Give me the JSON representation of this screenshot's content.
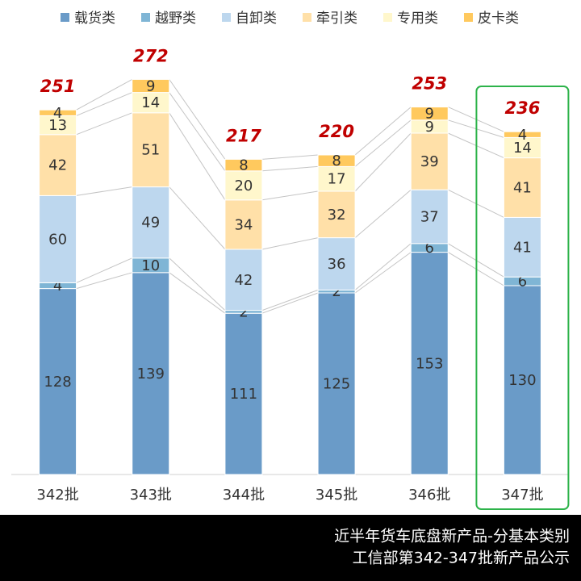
{
  "chart_data": {
    "type": "stacked_bar",
    "categories": [
      "342批",
      "343批",
      "344批",
      "345批",
      "346批",
      "347批"
    ],
    "series": [
      {
        "name": "载货类",
        "color": "#6a9bc8",
        "values": [
          128,
          139,
          111,
          125,
          153,
          130
        ]
      },
      {
        "name": "越野类",
        "color": "#7fb5d5",
        "values": [
          4,
          10,
          2,
          2,
          6,
          6
        ]
      },
      {
        "name": "自卸类",
        "color": "#bdd7ee",
        "values": [
          60,
          49,
          42,
          36,
          37,
          41
        ]
      },
      {
        "name": "牵引类",
        "color": "#ffe0a8",
        "values": [
          42,
          51,
          34,
          32,
          39,
          41
        ]
      },
      {
        "name": "专用类",
        "color": "#fff7cc",
        "values": [
          13,
          14,
          20,
          17,
          9,
          14
        ]
      },
      {
        "name": "皮卡类",
        "color": "#ffc95e",
        "values": [
          4,
          9,
          8,
          8,
          9,
          4
        ]
      }
    ],
    "totals": [
      251,
      272,
      217,
      220,
      253,
      236
    ],
    "ylim": [
      0,
      300
    ],
    "footer": [
      "近半年货车底盘新产品-分基本类别",
      "工信部第342-347批新产品公示"
    ]
  }
}
